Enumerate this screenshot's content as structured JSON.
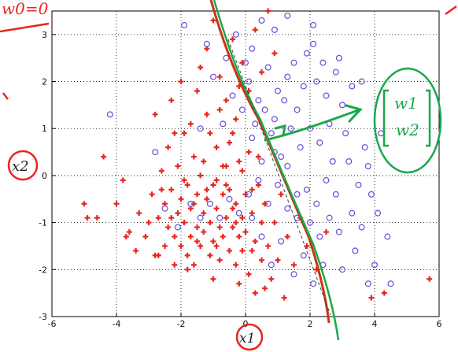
{
  "chart_data": {
    "type": "scatter",
    "title": "",
    "xlabel": "x1",
    "ylabel": "x2",
    "xlim": [
      -6,
      6
    ],
    "ylim": [
      -3,
      3.5
    ],
    "xticks": [
      "-6",
      "-4",
      "-2",
      "0",
      "2",
      "4",
      "6"
    ],
    "yticks": [
      "-3",
      "-2",
      "-1",
      "0",
      "1",
      "2",
      "3"
    ],
    "grid": true,
    "series": [
      {
        "marker": "plus",
        "color": "#e8261c",
        "points": [
          [
            -5.0,
            -0.6
          ],
          [
            -4.9,
            -0.9
          ],
          [
            -4.6,
            -0.9
          ],
          [
            -4.4,
            0.4
          ],
          [
            -4.0,
            -0.6
          ],
          [
            -3.8,
            -0.1
          ],
          [
            -3.7,
            -1.3
          ],
          [
            -3.6,
            -1.2
          ],
          [
            -3.4,
            -1.6
          ],
          [
            -3.3,
            -0.8
          ],
          [
            -3.1,
            -1.3
          ],
          [
            -3.0,
            -1.0
          ],
          [
            -2.9,
            -0.4
          ],
          [
            -2.8,
            -1.7
          ],
          [
            -2.7,
            -0.9
          ],
          [
            -2.6,
            0.1
          ],
          [
            -2.5,
            -1.5
          ],
          [
            -2.5,
            -0.6
          ],
          [
            -2.4,
            0.6
          ],
          [
            -2.4,
            -1.1
          ],
          [
            -2.3,
            -0.3
          ],
          [
            -2.2,
            -1.9
          ],
          [
            -2.2,
            -1.3
          ],
          [
            -2.1,
            -0.8
          ],
          [
            -2.1,
            0.2
          ],
          [
            -2.0,
            -1.5
          ],
          [
            -2.0,
            -0.5
          ],
          [
            -1.9,
            -1.0
          ],
          [
            -1.9,
            0.9
          ],
          [
            -1.8,
            -1.7
          ],
          [
            -1.8,
            -0.2
          ],
          [
            -1.7,
            -1.3
          ],
          [
            -1.7,
            -0.7
          ],
          [
            -1.6,
            0.4
          ],
          [
            -1.6,
            -1.9
          ],
          [
            -1.5,
            -1.1
          ],
          [
            -1.5,
            -0.4
          ],
          [
            -1.4,
            -1.5
          ],
          [
            -1.4,
            0.0
          ],
          [
            -1.3,
            -0.8
          ],
          [
            -1.3,
            -1.2
          ],
          [
            -1.2,
            1.3
          ],
          [
            -1.2,
            -0.5
          ],
          [
            -1.1,
            -1.7
          ],
          [
            -1.1,
            -1.0
          ],
          [
            -1.0,
            -0.2
          ],
          [
            -1.0,
            -1.4
          ],
          [
            -0.9,
            -0.7
          ],
          [
            -0.9,
            0.6
          ],
          [
            -0.8,
            -1.1
          ],
          [
            -0.8,
            -1.8
          ],
          [
            -0.7,
            -0.4
          ],
          [
            -0.7,
            -1.3
          ],
          [
            -0.6,
            0.2
          ],
          [
            -0.6,
            -0.9
          ],
          [
            -0.5,
            -1.6
          ],
          [
            -0.5,
            -0.3
          ],
          [
            -0.4,
            -1.1
          ],
          [
            -0.4,
            0.9
          ],
          [
            -0.3,
            -0.6
          ],
          [
            -0.3,
            -1.9
          ],
          [
            -0.2,
            -1.3
          ],
          [
            -0.2,
            0.3
          ],
          [
            -0.1,
            -0.9
          ],
          [
            -0.1,
            -1.6
          ],
          [
            0.0,
            -0.4
          ],
          [
            0.0,
            -1.2
          ],
          [
            0.1,
            0.5
          ],
          [
            0.1,
            -2.1
          ],
          [
            0.2,
            -0.8
          ],
          [
            0.3,
            -1.4
          ],
          [
            0.3,
            -2.5
          ],
          [
            0.4,
            -0.2
          ],
          [
            0.5,
            -1.0
          ],
          [
            0.5,
            -1.8
          ],
          [
            0.6,
            -0.6
          ],
          [
            0.7,
            -1.5
          ],
          [
            0.8,
            -2.2
          ],
          [
            0.9,
            -1.0
          ],
          [
            1.0,
            -1.8
          ],
          [
            1.1,
            -0.4
          ],
          [
            1.2,
            -2.6
          ],
          [
            1.3,
            -1.3
          ],
          [
            1.5,
            -1.9
          ],
          [
            1.7,
            -0.9
          ],
          [
            1.9,
            -1.5
          ],
          [
            2.2,
            -2.0
          ],
          [
            2.5,
            -1.2
          ],
          [
            -2.8,
            1.3
          ],
          [
            -2.3,
            1.6
          ],
          [
            -2.0,
            2.0
          ],
          [
            -1.7,
            1.1
          ],
          [
            -1.4,
            2.3
          ],
          [
            -1.2,
            2.7
          ],
          [
            -1.0,
            3.3
          ],
          [
            -0.8,
            2.1
          ],
          [
            -0.6,
            1.6
          ],
          [
            -0.4,
            2.9
          ],
          [
            -0.3,
            1.2
          ],
          [
            -0.1,
            2.4
          ],
          [
            0.1,
            1.8
          ],
          [
            0.3,
            3.1
          ],
          [
            0.5,
            2.2
          ],
          [
            0.7,
            3.5
          ],
          [
            0.9,
            2.6
          ],
          [
            -1.5,
            1.8
          ],
          [
            -1.1,
            0.9
          ],
          [
            -0.8,
            1.4
          ],
          [
            -0.5,
            0.7
          ],
          [
            -0.2,
            1.9
          ],
          [
            -2.2,
            0.9
          ],
          [
            -2.6,
            -0.3
          ],
          [
            -1.9,
            -0.1
          ],
          [
            -1.6,
            -0.6
          ],
          [
            -1.3,
            0.3
          ],
          [
            -0.9,
            -0.1
          ],
          [
            -0.7,
            0.2
          ],
          [
            -0.4,
            -0.7
          ],
          [
            -0.1,
            0.1
          ],
          [
            0.2,
            -0.3
          ],
          [
            0.4,
            0.4
          ],
          [
            -1.8,
            -2.0
          ],
          [
            -1.0,
            -2.2
          ],
          [
            -0.2,
            -2.3
          ],
          [
            0.6,
            -2.4
          ],
          [
            3.9,
            -2.6
          ],
          [
            4.3,
            -2.5
          ],
          [
            5.7,
            -2.2
          ],
          [
            -2.7,
            -1.7
          ],
          [
            -2.3,
            -0.9
          ],
          [
            -1.5,
            -1.4
          ],
          [
            -0.9,
            -1.5
          ],
          [
            -0.3,
            -1.0
          ],
          [
            0.2,
            -1.6
          ],
          [
            -1.2,
            -0.3
          ],
          [
            -0.6,
            -0.2
          ]
        ]
      },
      {
        "marker": "circle",
        "color": "#6a4bd6",
        "points": [
          [
            -4.2,
            1.3
          ],
          [
            -1.9,
            3.2
          ],
          [
            -1.2,
            2.8
          ],
          [
            -0.6,
            2.5
          ],
          [
            -0.3,
            3.0
          ],
          [
            0.2,
            2.7
          ],
          [
            0.5,
            3.3
          ],
          [
            0.9,
            3.1
          ],
          [
            1.3,
            3.4
          ],
          [
            2.1,
            3.2
          ],
          [
            0.1,
            2.0
          ],
          [
            0.4,
            1.6
          ],
          [
            0.7,
            2.3
          ],
          [
            1.0,
            1.8
          ],
          [
            1.3,
            2.1
          ],
          [
            1.6,
            1.4
          ],
          [
            1.9,
            2.6
          ],
          [
            2.2,
            2.0
          ],
          [
            2.5,
            1.7
          ],
          [
            2.8,
            2.2
          ],
          [
            3.0,
            1.5
          ],
          [
            3.3,
            1.9
          ],
          [
            3.6,
            2.0
          ],
          [
            2.9,
            2.5
          ],
          [
            2.6,
            1.1
          ],
          [
            2.3,
            0.7
          ],
          [
            2.0,
            1.0
          ],
          [
            1.7,
            0.6
          ],
          [
            1.4,
            1.0
          ],
          [
            1.1,
            0.4
          ],
          [
            0.8,
            0.9
          ],
          [
            0.5,
            0.3
          ],
          [
            0.2,
            0.8
          ],
          [
            -0.1,
            1.4
          ],
          [
            -0.4,
            1.7
          ],
          [
            -0.7,
            1.1
          ],
          [
            -1.0,
            2.1
          ],
          [
            -1.4,
            1.0
          ],
          [
            1.9,
            -0.3
          ],
          [
            2.2,
            -0.6
          ],
          [
            2.5,
            -0.1
          ],
          [
            2.8,
            -0.4
          ],
          [
            3.2,
            0.3
          ],
          [
            3.5,
            -0.2
          ],
          [
            3.7,
            0.6
          ],
          [
            3.3,
            -0.8
          ],
          [
            2.9,
            -1.2
          ],
          [
            2.6,
            -0.9
          ],
          [
            2.3,
            -1.3
          ],
          [
            2.0,
            -1.0
          ],
          [
            1.6,
            -0.4
          ],
          [
            1.3,
            -0.7
          ],
          [
            1.0,
            -0.2
          ],
          [
            0.7,
            -0.6
          ],
          [
            0.4,
            -0.1
          ],
          [
            0.1,
            -0.4
          ],
          [
            -0.2,
            -0.8
          ],
          [
            -0.5,
            -0.5
          ],
          [
            -0.8,
            -0.9
          ],
          [
            -1.1,
            -0.6
          ],
          [
            -1.4,
            -0.9
          ],
          [
            -1.7,
            -0.6
          ],
          [
            -2.1,
            -1.1
          ],
          [
            -2.5,
            -0.7
          ],
          [
            -2.8,
            0.5
          ],
          [
            1.8,
            -1.7
          ],
          [
            2.4,
            -1.9
          ],
          [
            3.0,
            -2.0
          ],
          [
            3.4,
            -1.6
          ],
          [
            3.8,
            -2.3
          ],
          [
            4.5,
            -2.3
          ],
          [
            3.6,
            -1.1
          ],
          [
            4.1,
            -0.8
          ],
          [
            4.4,
            -1.3
          ],
          [
            3.9,
            -0.4
          ],
          [
            1.5,
            -2.1
          ],
          [
            1.1,
            -1.4
          ],
          [
            0.8,
            -1.9
          ],
          [
            0.5,
            -1.3
          ],
          [
            0.2,
            -0.9
          ],
          [
            4.2,
            0.9
          ],
          [
            3.1,
            0.9
          ],
          [
            2.7,
            0.3
          ],
          [
            0.0,
            2.4
          ],
          [
            0.3,
            1.1
          ],
          [
            0.6,
            1.4
          ],
          [
            0.9,
            1.2
          ],
          [
            1.2,
            1.6
          ],
          [
            1.5,
            2.4
          ],
          [
            1.8,
            1.9
          ],
          [
            2.1,
            2.8
          ],
          [
            2.4,
            2.4
          ],
          [
            3.8,
            0.2
          ],
          [
            4.0,
            -1.9
          ],
          [
            2.1,
            -2.3
          ],
          [
            1.6,
            -0.9
          ],
          [
            1.3,
            0.2
          ],
          [
            0.9,
            0.5
          ]
        ]
      }
    ],
    "annotations": {
      "weight_vector": [
        "w1",
        "w2"
      ],
      "axis_x": "x1",
      "axis_y": "x2",
      "top_note": "w0=0"
    },
    "colors": {
      "class_a": "#e8261c",
      "class_b": "#6a4bd6",
      "pen_green": "#1aa84a",
      "pen_red": "#e8261c"
    }
  }
}
